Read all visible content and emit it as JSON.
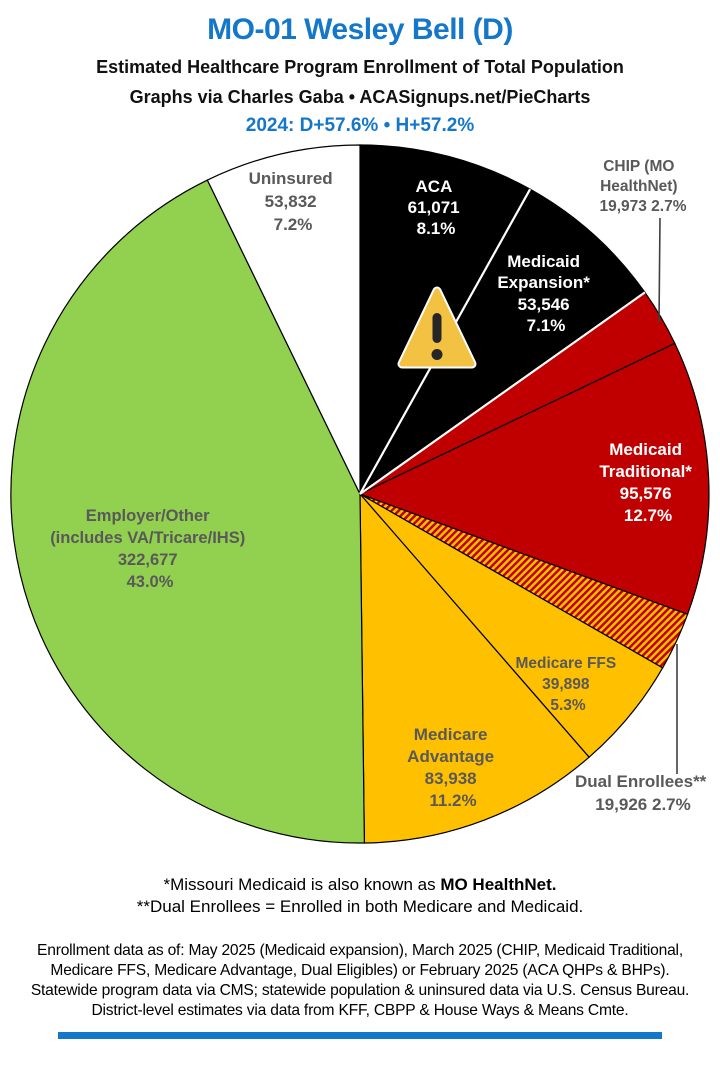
{
  "header": {
    "title": "MO-01 Wesley Bell (D)",
    "title_color": "#1577C9",
    "subtitle1": "Estimated Healthcare Program Enrollment of Total Population",
    "subtitle2": "Graphs via Charles Gaba   •   ACASignups.net/PieCharts",
    "subtitle3": "2024: D+57.6%  •  H+57.2%"
  },
  "chart_data": {
    "type": "pie",
    "title": "Estimated Healthcare Program Enrollment of Total Population",
    "direction": "clockwise",
    "start_angle_deg": 0,
    "slice_stroke": "#000000",
    "white_divider_after_slice": [
      0,
      1
    ],
    "hatch_colors": [
      "#FFC000",
      "#C00000"
    ],
    "slices": [
      {
        "name": "ACA",
        "value": 61071,
        "percent": 8.1,
        "color": "#000000",
        "label_color": "#FFFFFF",
        "label_lines": [
          "ACA",
          "61,071",
          "8.1%"
        ]
      },
      {
        "name": "Medicaid Expansion",
        "value": 53546,
        "percent": 7.1,
        "color": "#000000",
        "label_color": "#FFFFFF",
        "label_lines": [
          "Medicaid",
          "Expansion*",
          "53,546",
          "7.1%"
        ]
      },
      {
        "name": "CHIP (MO HealthNet)",
        "value": 19973,
        "percent": 2.7,
        "color": "#C00000",
        "label_color": "#595959",
        "label_lines": [
          "CHIP (MO",
          "HealthNet)",
          "19,973 2.7%"
        ],
        "label_outside": true
      },
      {
        "name": "Medicaid Traditional",
        "value": 95576,
        "percent": 12.7,
        "color": "#C00000",
        "label_color": "#FFFFFF",
        "label_lines": [
          "Medicaid",
          "Traditional*",
          "95,576",
          "12.7%"
        ]
      },
      {
        "name": "Dual Enrollees",
        "value": 19926,
        "percent": 2.7,
        "color": "hatch",
        "label_color": "#595959",
        "label_lines": [
          "Dual Enrollees**",
          "19,926 2.7%"
        ],
        "label_outside": true
      },
      {
        "name": "Medicare FFS",
        "value": 39898,
        "percent": 5.3,
        "color": "#FFC000",
        "label_color": "#595959",
        "label_lines": [
          "Medicare FFS",
          "39,898",
          "5.3%"
        ]
      },
      {
        "name": "Medicare Advantage",
        "value": 83938,
        "percent": 11.2,
        "color": "#FFC000",
        "label_color": "#595959",
        "label_lines": [
          "Medicare",
          "Advantage",
          "83,938",
          "11.2%"
        ]
      },
      {
        "name": "Employer/Other (includes VA/Tricare/IHS)",
        "value": 322677,
        "percent": 43.0,
        "color": "#92D050",
        "label_color": "#595959",
        "label_lines": [
          "Employer/Other",
          "(includes VA/Tricare/IHS)",
          "322,677",
          "43.0%"
        ]
      },
      {
        "name": "Uninsured",
        "value": 53832,
        "percent": 7.2,
        "color": "#FFFFFF",
        "label_color": "#595959",
        "label_lines": [
          "Uninsured",
          "53,832",
          "7.2%"
        ]
      }
    ]
  },
  "warning_icon": {
    "fill": "#F4C243",
    "border": "#FFFFFF",
    "mark_color": "#262626"
  },
  "footnotes": {
    "line1_prefix": "*Missouri Medicaid is also known as ",
    "line1_bold": "MO HealthNet.",
    "line2": "**Dual Enrollees = Enrolled in both Medicare and Medicaid."
  },
  "source_note": {
    "lines": [
      "Enrollment data as of: May 2025 (Medicaid expansion), March 2025 (CHIP, Medicaid Traditional,",
      "Medicare FFS, Medicare Advantage, Dual Eligibles) or February 2025 (ACA QHPs & BHPs).",
      "Statewide program data via CMS; statewide population & uninsured data via U.S. Census Bureau.",
      "District-level estimates via data from KFF, CBPP & House Ways & Means Cmte."
    ]
  },
  "footer_bar_color": "#1577C9"
}
